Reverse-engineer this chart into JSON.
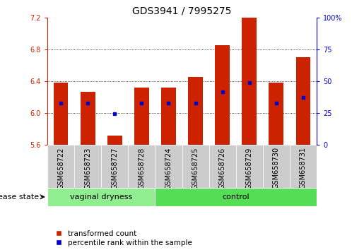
{
  "title": "GDS3941 / 7995275",
  "samples": [
    "GSM658722",
    "GSM658723",
    "GSM658727",
    "GSM658728",
    "GSM658724",
    "GSM658725",
    "GSM658726",
    "GSM658729",
    "GSM658730",
    "GSM658731"
  ],
  "bar_values": [
    6.38,
    6.27,
    5.72,
    6.32,
    6.32,
    6.45,
    6.85,
    7.2,
    6.38,
    6.7
  ],
  "blue_markers": [
    6.13,
    6.13,
    5.99,
    6.13,
    6.13,
    6.13,
    6.27,
    6.38,
    6.13,
    6.2
  ],
  "ylim_left": [
    5.6,
    7.2
  ],
  "yticks_left": [
    5.6,
    6.0,
    6.4,
    6.8,
    7.2
  ],
  "ylim_right": [
    0,
    100
  ],
  "yticks_right": [
    0,
    25,
    50,
    75,
    100
  ],
  "bar_color": "#cc2200",
  "blue_color": "#0000cc",
  "bar_base": 5.6,
  "group1_label": "vaginal dryness",
  "group2_label": "control",
  "group1_count": 4,
  "group2_count": 6,
  "group1_bg": "#90ee90",
  "group2_bg": "#55dd55",
  "sample_bg": "#cccccc",
  "disease_state_label": "disease state",
  "legend_bar_label": "transformed count",
  "legend_marker_label": "percentile rank within the sample",
  "bar_width": 0.55,
  "fig_bg": "#ffffff",
  "title_fontsize": 10,
  "tick_fontsize": 7,
  "label_fontsize": 8
}
